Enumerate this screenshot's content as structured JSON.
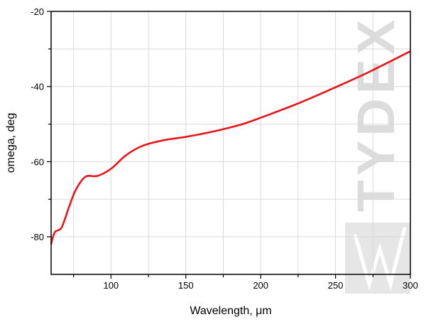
{
  "chart_data": {
    "type": "line",
    "title": "",
    "xlabel": "Wavelength, μm",
    "ylabel": "omega, deg",
    "xlim": [
      60,
      300
    ],
    "ylim": [
      -90,
      -20
    ],
    "xticks": [
      100,
      150,
      200,
      250,
      300
    ],
    "yticks": [
      -80,
      -60,
      -40,
      -20
    ],
    "x_grid_step": 25,
    "y_grid_step": 10,
    "grid": true,
    "series": [
      {
        "color": "#e8161b",
        "x": [
          60,
          62.4,
          67,
          72,
          76.6,
          83,
          91,
          100,
          110,
          121,
          135,
          150,
          168,
          187,
          200,
          225,
          250,
          272,
          300
        ],
        "y": [
          -82,
          -78.8,
          -77.5,
          -72,
          -67.4,
          -64,
          -63.8,
          -61.9,
          -58.3,
          -55.8,
          -54.3,
          -53.4,
          -52,
          -50.1,
          -48.3,
          -44.5,
          -40.2,
          -36.2,
          -30.6
        ]
      }
    ],
    "watermark": "TYDEX"
  }
}
